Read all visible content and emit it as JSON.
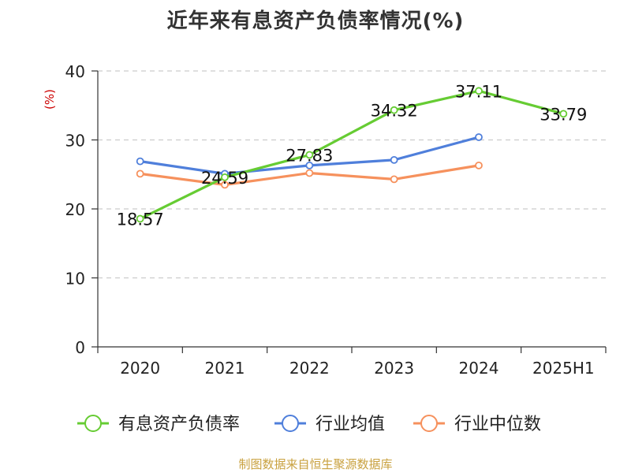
{
  "colors": {
    "debt_ratio": "#66cc33",
    "industry_avg": "#4f7fdb",
    "industry_median": "#f6915d",
    "ylabel": "#cc0000",
    "source": "#c9a13f",
    "axis": "#333333",
    "grid": "#cccccc",
    "text": "#222222"
  },
  "source": "制图数据来自恒生聚源数据库",
  "chart_data": {
    "type": "line",
    "title": "近年来有息资产负债率情况(%)",
    "xlabel": "",
    "ylabel": "(%)",
    "categories": [
      "2020",
      "2021",
      "2022",
      "2023",
      "2024",
      "2025H1"
    ],
    "ylim": [
      0,
      40
    ],
    "yticks": [
      0,
      10,
      20,
      30,
      40
    ],
    "grid": true,
    "legend_position": "bottom",
    "series": [
      {
        "name": "有息资产负债率",
        "color": "#66cc33",
        "values": [
          18.57,
          24.59,
          27.83,
          34.32,
          37.11,
          33.79
        ],
        "labels": [
          "18.57",
          "24.59",
          "27.83",
          "34.32",
          "37.11",
          "33.79"
        ]
      },
      {
        "name": "行业均值",
        "color": "#4f7fdb",
        "values": [
          26.9,
          25.1,
          26.3,
          27.1,
          30.4,
          null
        ],
        "labels": []
      },
      {
        "name": "行业中位数",
        "color": "#f6915d",
        "values": [
          25.1,
          23.5,
          25.2,
          24.3,
          26.3,
          null
        ],
        "labels": []
      }
    ]
  }
}
